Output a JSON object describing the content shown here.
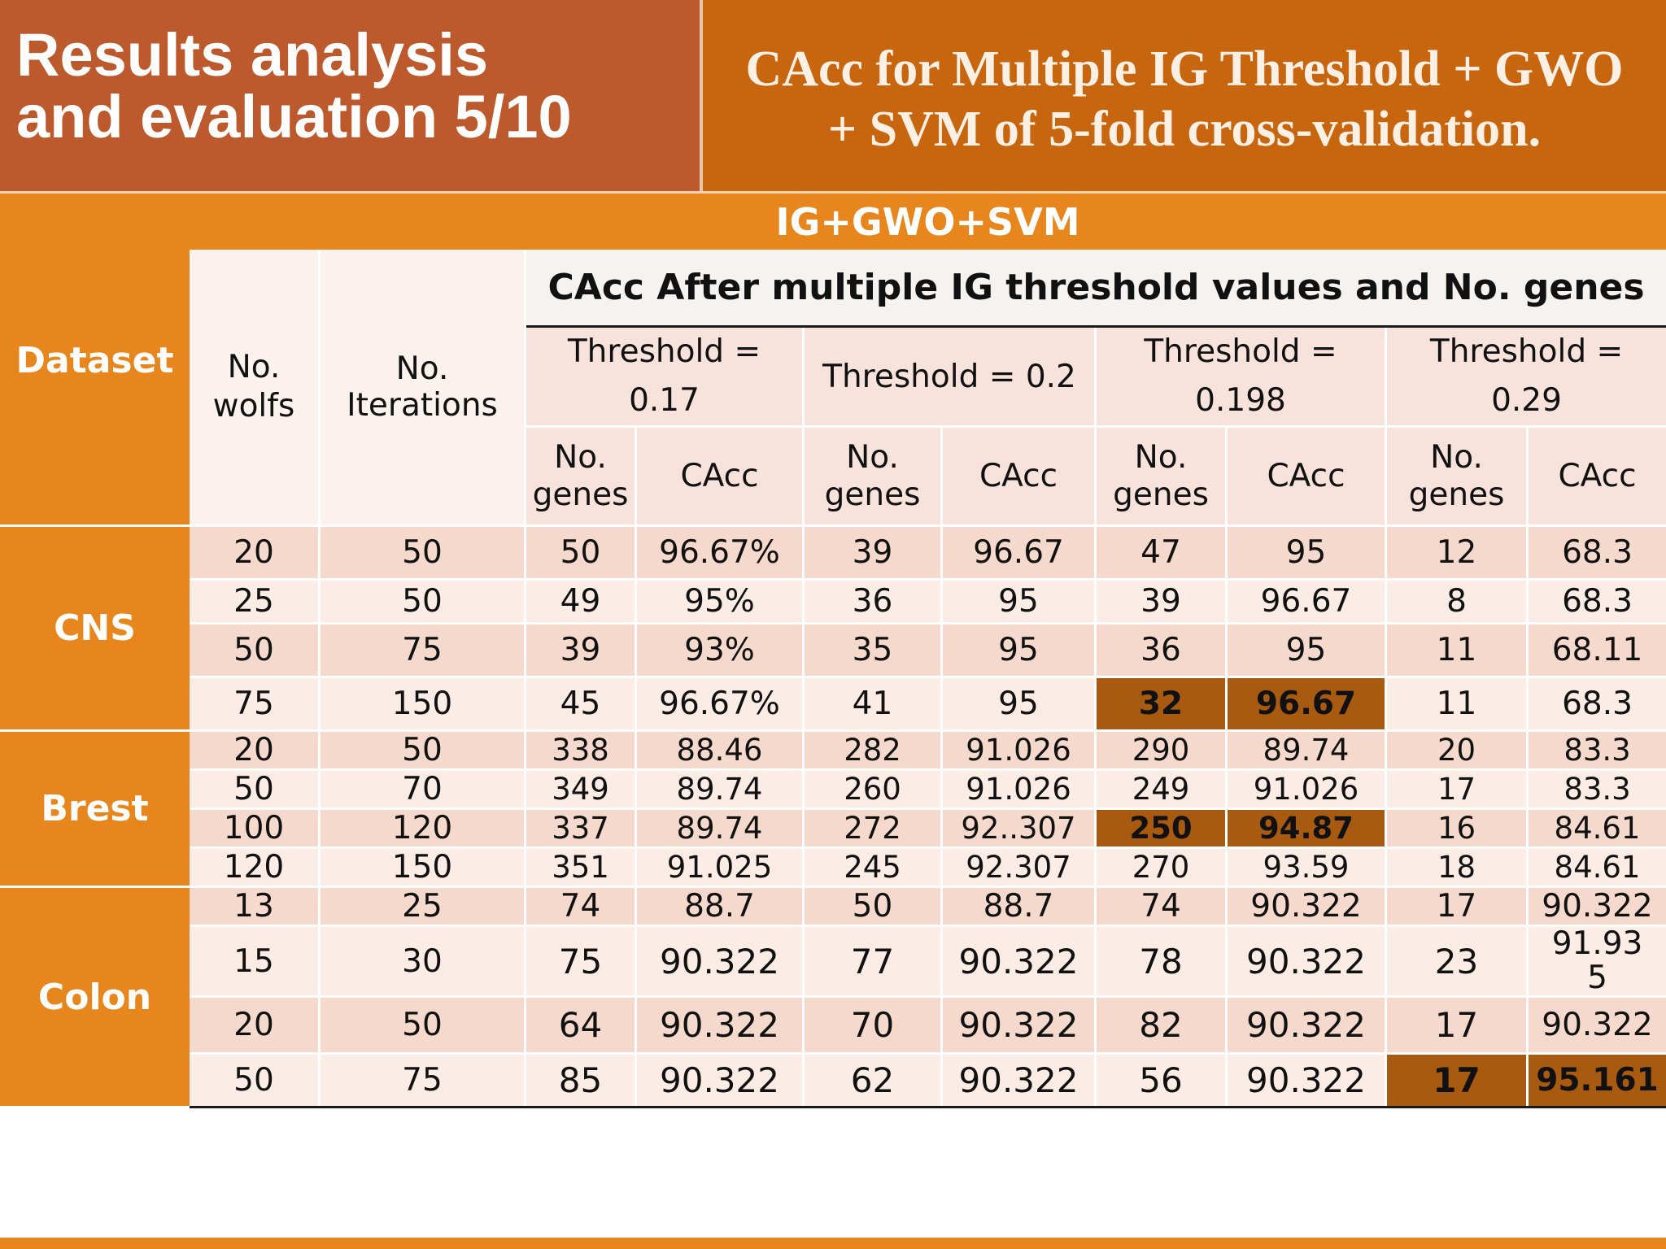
{
  "header": {
    "title_line1": "Results analysis",
    "title_line2": "and evaluation  5/10",
    "subtitle_line1": "CAcc for Multiple IG Threshold + GWO",
    "subtitle_line2": "+ SVM of 5-fold cross-validation."
  },
  "table": {
    "dataset_label": "Dataset",
    "method_label": "IG+GWO+SVM",
    "wolfs_label": "No. wolfs",
    "iterations_label": "No. Iterations",
    "cacc_header": "CAcc After multiple IG threshold values and No. genes",
    "thresholds": [
      "Threshold = 0.17",
      "Threshold = 0.2",
      "Threshold = 0.198",
      "Threshold = 0.29"
    ],
    "genes_label": "No. genes",
    "cacc_label": "CAcc",
    "groups": [
      {
        "name": "CNS",
        "rows": [
          {
            "wolfs": "20",
            "iter": "50",
            "cells": [
              "50",
              "96.67%",
              "39",
              "96.67",
              "47",
              "95",
              "12",
              "68.3"
            ]
          },
          {
            "wolfs": "25",
            "iter": "50",
            "cells": [
              "49",
              "95%",
              "36",
              "95",
              "39",
              "96.67",
              "8",
              "68.3"
            ]
          },
          {
            "wolfs": "50",
            "iter": "75",
            "cells": [
              "39",
              "93%",
              "35",
              "95",
              "36",
              "95",
              "11",
              "68.11"
            ]
          },
          {
            "wolfs": "75",
            "iter": "150",
            "cells": [
              "45",
              "96.67%",
              "41",
              "95",
              "32",
              "96.67",
              "11",
              "68.3"
            ]
          }
        ]
      },
      {
        "name": "Brest",
        "rows": [
          {
            "wolfs": "20",
            "iter": "50",
            "cells": [
              "338",
              "88.46",
              "282",
              "91.026",
              "290",
              "89.74",
              "20",
              "83.3"
            ]
          },
          {
            "wolfs": "50",
            "iter": "70",
            "cells": [
              "349",
              "89.74",
              "260",
              "91.026",
              "249",
              "91.026",
              "17",
              "83.3"
            ]
          },
          {
            "wolfs": "100",
            "iter": "120",
            "cells": [
              "337",
              "89.74",
              "272",
              "92..307",
              "250",
              "94.87",
              "16",
              "84.61"
            ]
          },
          {
            "wolfs": "120",
            "iter": "150",
            "cells": [
              "351",
              "91.025",
              "245",
              "92.307",
              "270",
              "93.59",
              "18",
              "84.61"
            ]
          }
        ]
      },
      {
        "name": "Colon",
        "rows": [
          {
            "wolfs": "13",
            "iter": "25",
            "cells": [
              "74",
              "88.7",
              "50",
              "88.7",
              "74",
              "90.322",
              "17",
              "90.322"
            ]
          },
          {
            "wolfs": "15",
            "iter": "30",
            "cells": [
              "75",
              "90.322",
              "77",
              "90.322",
              "78",
              "90.322",
              "23",
              "91.93 5"
            ]
          },
          {
            "wolfs": "20",
            "iter": "50",
            "cells": [
              "64",
              "90.322",
              "70",
              "90.322",
              "82",
              "90.322",
              "17",
              "90.322"
            ]
          },
          {
            "wolfs": "50",
            "iter": "75",
            "cells": [
              "85",
              "90.322",
              "62",
              "90.322",
              "56",
              "90.322",
              "17",
              "95.161"
            ]
          }
        ]
      }
    ]
  }
}
